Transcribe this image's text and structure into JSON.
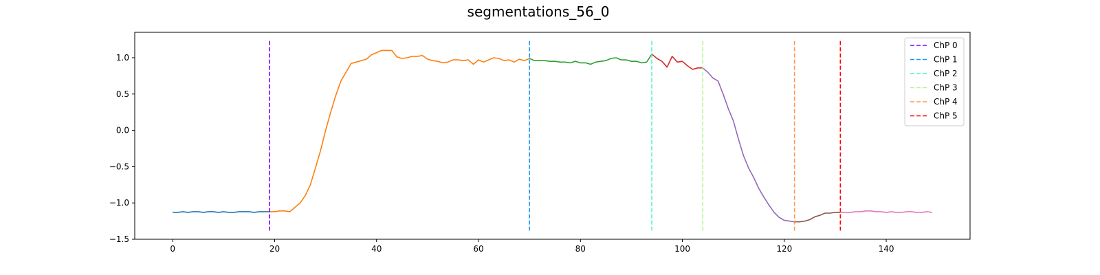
{
  "chart_data": {
    "type": "line",
    "title": "segmentations_56_0",
    "xlabel": "",
    "ylabel": "",
    "xlim": [
      -7.45,
      156.45
    ],
    "ylim": [
      -1.5,
      1.35
    ],
    "x_ticks": [
      0,
      20,
      40,
      60,
      80,
      100,
      120,
      140
    ],
    "y_ticks": [
      -1.5,
      -1.0,
      -0.5,
      0.0,
      0.5,
      1.0
    ],
    "x_tick_labels": [
      "0",
      "20",
      "40",
      "60",
      "80",
      "100",
      "120",
      "140"
    ],
    "y_tick_labels": [
      "−1.5",
      "−1.0",
      "−0.5",
      "0.0",
      "0.5",
      "1.0"
    ],
    "grid": false,
    "legend_position": "top-right",
    "segments": [
      {
        "color": "#1f77b4",
        "x": [
          0,
          1,
          2,
          3,
          4,
          5,
          6,
          7,
          8,
          9,
          10,
          11,
          12,
          13,
          14,
          15,
          16,
          17,
          18,
          19
        ],
        "y": [
          -1.13,
          -1.13,
          -1.12,
          -1.13,
          -1.12,
          -1.12,
          -1.13,
          -1.12,
          -1.12,
          -1.13,
          -1.12,
          -1.13,
          -1.13,
          -1.12,
          -1.12,
          -1.12,
          -1.13,
          -1.12,
          -1.12,
          -1.12
        ]
      },
      {
        "color": "#ff7f0e",
        "x": [
          19,
          20,
          21,
          22,
          23,
          24,
          25,
          26,
          27,
          28,
          29,
          30,
          31,
          32,
          33,
          34,
          35,
          36,
          37,
          38,
          39,
          40,
          41,
          42,
          43,
          44,
          45,
          46,
          47,
          48,
          49,
          50,
          51,
          52,
          53,
          54,
          55,
          56,
          57,
          58,
          59,
          60,
          61,
          62,
          63,
          64,
          65,
          66,
          67,
          68,
          69,
          70
        ],
        "y": [
          -1.12,
          -1.12,
          -1.11,
          -1.11,
          -1.12,
          -1.06,
          -1.0,
          -0.9,
          -0.75,
          -0.52,
          -0.28,
          0.0,
          0.25,
          0.48,
          0.68,
          0.8,
          0.92,
          0.94,
          0.96,
          0.98,
          1.04,
          1.07,
          1.1,
          1.1,
          1.1,
          1.01,
          0.99,
          1.0,
          1.02,
          1.02,
          1.03,
          0.98,
          0.96,
          0.95,
          0.93,
          0.94,
          0.97,
          0.97,
          0.96,
          0.97,
          0.91,
          0.97,
          0.94,
          0.97,
          1.0,
          0.99,
          0.96,
          0.97,
          0.94,
          0.98,
          0.96,
          0.99
        ]
      },
      {
        "color": "#2ca02c",
        "x": [
          70,
          71,
          72,
          73,
          74,
          75,
          76,
          77,
          78,
          79,
          80,
          81,
          82,
          83,
          84,
          85,
          86,
          87,
          88,
          89,
          90,
          91,
          92,
          93,
          94
        ],
        "y": [
          0.99,
          0.96,
          0.96,
          0.96,
          0.95,
          0.95,
          0.94,
          0.94,
          0.93,
          0.95,
          0.93,
          0.93,
          0.91,
          0.94,
          0.95,
          0.96,
          0.99,
          1.0,
          0.97,
          0.97,
          0.95,
          0.95,
          0.93,
          0.94,
          1.05
        ]
      },
      {
        "color": "#d62728",
        "x": [
          94,
          95,
          96,
          97,
          98,
          99,
          100,
          101,
          102,
          103,
          104
        ],
        "y": [
          1.05,
          0.99,
          0.95,
          0.87,
          1.02,
          0.94,
          0.95,
          0.89,
          0.84,
          0.86,
          0.86
        ]
      },
      {
        "color": "#9467bd",
        "x": [
          104,
          105,
          106,
          107,
          108,
          109,
          110,
          111,
          112,
          113,
          114,
          115,
          116,
          117,
          118,
          119,
          120,
          121,
          122
        ],
        "y": [
          0.86,
          0.8,
          0.72,
          0.68,
          0.5,
          0.3,
          0.13,
          -0.12,
          -0.35,
          -0.52,
          -0.65,
          -0.8,
          -0.92,
          -1.03,
          -1.13,
          -1.2,
          -1.24,
          -1.25,
          -1.26
        ]
      },
      {
        "color": "#8c564b",
        "x": [
          122,
          123,
          124,
          125,
          126,
          127,
          128,
          129,
          130,
          131
        ],
        "y": [
          -1.26,
          -1.26,
          -1.25,
          -1.23,
          -1.19,
          -1.17,
          -1.14,
          -1.14,
          -1.13,
          -1.13
        ]
      },
      {
        "color": "#e377c2",
        "x": [
          131,
          132,
          133,
          134,
          135,
          136,
          137,
          138,
          139,
          140,
          141,
          142,
          143,
          144,
          145,
          146,
          147,
          148,
          149
        ],
        "y": [
          -1.13,
          -1.13,
          -1.13,
          -1.12,
          -1.12,
          -1.11,
          -1.11,
          -1.12,
          -1.12,
          -1.13,
          -1.12,
          -1.13,
          -1.13,
          -1.12,
          -1.12,
          -1.13,
          -1.13,
          -1.12,
          -1.13
        ]
      }
    ],
    "change_points": [
      {
        "name": "ChP 0",
        "x": 19,
        "color": "#8000ff"
      },
      {
        "name": "ChP 1",
        "x": 70,
        "color": "#1996f3"
      },
      {
        "name": "ChP 2",
        "x": 94,
        "color": "#4cf2ce"
      },
      {
        "name": "ChP 3",
        "x": 104,
        "color": "#b2f396"
      },
      {
        "name": "ChP 4",
        "x": 122,
        "color": "#ff964f"
      },
      {
        "name": "ChP 5",
        "x": 131,
        "color": "#ff0000"
      }
    ],
    "change_point_y_range": [
      -1.38,
      1.23
    ]
  }
}
